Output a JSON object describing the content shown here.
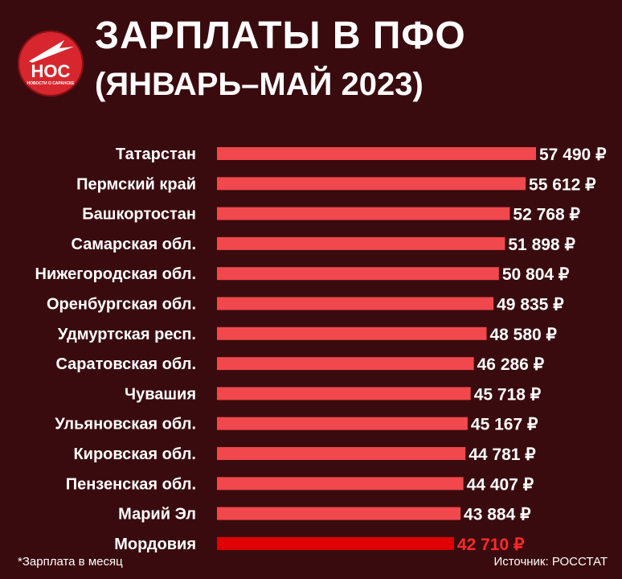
{
  "header": {
    "title": "ЗАРПЛАТЫ В ПФО",
    "subtitle": "(ЯНВАРЬ–МАЙ  2023)"
  },
  "logo": {
    "main": "НОС",
    "sub": "НОВОСТИ О САРАНСКЕ"
  },
  "colors": {
    "background": "#3a0b0e",
    "bar": "#f0484d",
    "highlight_bar": "#e00000",
    "label": "#ffffff",
    "highlight_value": "#ff2a2a"
  },
  "chart_data": {
    "type": "bar",
    "orientation": "horizontal",
    "categories": [
      "Татарстан",
      "Пермский край",
      "Башкортостан",
      "Самарская обл.",
      "Нижегородская обл.",
      "Оренбургская обл.",
      "Удмуртская респ.",
      "Саратовская обл.",
      "Чувашия",
      "Ульяновская обл.",
      "Кировская обл.",
      "Пензенская обл.",
      "Марий Эл",
      "Мордовия"
    ],
    "values": [
      57490,
      55612,
      52768,
      51898,
      50804,
      49835,
      48580,
      46286,
      45718,
      45167,
      44781,
      44407,
      43884,
      42710
    ],
    "value_labels": [
      "57 490 ₽",
      "55 612 ₽",
      "52 768 ₽",
      "51 898 ₽",
      "50 804 ₽",
      "49 835 ₽",
      "48 580 ₽",
      "46 286 ₽",
      "45 718 ₽",
      "45 167 ₽",
      "44 781 ₽",
      "44 407 ₽",
      "43 884 ₽",
      "42 710 ₽"
    ],
    "highlight_category": "Мордовия",
    "grid": false,
    "legend": "none"
  },
  "footer": {
    "note": "*Зарплата в месяц",
    "source": "Источник: РОССТАТ"
  }
}
